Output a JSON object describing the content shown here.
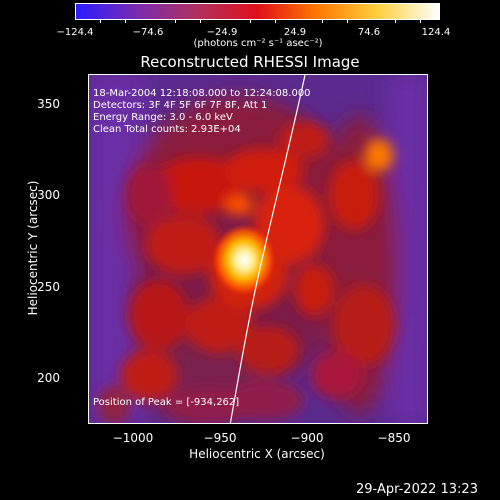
{
  "colorbar": {
    "colors": [
      "#2a1cff",
      "#7a2bb0",
      "#b03060",
      "#e0101a",
      "#ff7a00",
      "#ffd040",
      "#ffffff"
    ],
    "ticks": [
      "−124.4",
      "−74.6",
      "−24.9",
      "24.9",
      "74.6",
      "124.4"
    ],
    "units": "(photons cm⁻² s⁻¹ asec⁻²)"
  },
  "title": "Reconstructed RHESSI Image",
  "info": {
    "line1": "18-Mar-2004 12:18:08.000 to 12:24:08.000",
    "line2": "Detectors: 3F 4F 5F 6F 7F 8F, Att 1",
    "line3": "Energy Range: 3.0 - 6.0 keV",
    "line4": "Clean     Total counts: 2.93E+04",
    "peak": "Position of Peak = [-934,262]"
  },
  "axes": {
    "xlabel": "Heliocentric X (arcsec)",
    "ylabel": "Heliocentric Y (arcsec)",
    "xticks": [
      "−1000",
      "−950",
      "−900",
      "−850"
    ],
    "yticks": [
      "350",
      "300",
      "250",
      "200"
    ],
    "xrange": [
      -1030,
      -835
    ],
    "yrange": [
      175,
      370
    ]
  },
  "image_data": {
    "peak_position": [
      -934,
      262
    ],
    "limb_color": "#ffffff"
  },
  "timestamp": "29-Apr-2022 13:23"
}
